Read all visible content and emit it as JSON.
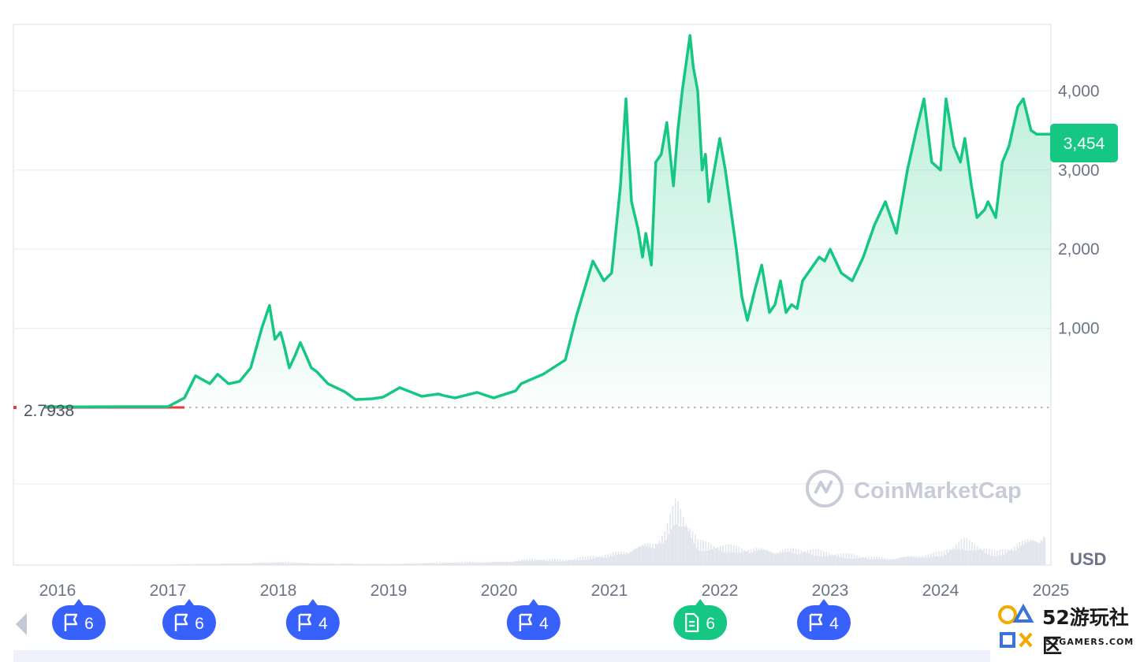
{
  "chart_data": {
    "type": "area",
    "currency_label": "USD",
    "start_value_label": "2.7938",
    "current_price_label": "3,454",
    "watermark": "CoinMarketCap",
    "y_ticks": [
      {
        "value": 1000,
        "label": "1,000"
      },
      {
        "value": 2000,
        "label": "2,000"
      },
      {
        "value": 3000,
        "label": "3,000"
      },
      {
        "value": 4000,
        "label": "4,000"
      }
    ],
    "ylim": [
      0,
      4800
    ],
    "x_ticks": [
      {
        "year": 2016,
        "label": "2016"
      },
      {
        "year": 2017,
        "label": "2017"
      },
      {
        "year": 2018,
        "label": "2018"
      },
      {
        "year": 2019,
        "label": "2019"
      },
      {
        "year": 2020,
        "label": "2020"
      },
      {
        "year": 2021,
        "label": "2021"
      },
      {
        "year": 2022,
        "label": "2022"
      },
      {
        "year": 2023,
        "label": "2023"
      },
      {
        "year": 2024,
        "label": "2024"
      },
      {
        "year": 2025,
        "label": "2025"
      }
    ],
    "xlim": [
      2015.6,
      2025.0
    ],
    "series": [
      {
        "x": [
          2015.88,
          2016.2,
          2016.6,
          2017.0,
          2017.15,
          2017.25,
          2017.38,
          2017.45,
          2017.55,
          2017.65,
          2017.75,
          2017.85,
          2017.92,
          2017.97,
          2018.02,
          2018.05,
          2018.1,
          2018.15,
          2018.2,
          2018.3,
          2018.35,
          2018.45,
          2018.6,
          2018.7,
          2018.85,
          2018.95,
          2019.1,
          2019.3,
          2019.45,
          2019.5,
          2019.6,
          2019.8,
          2019.95,
          2020.15,
          2020.2,
          2020.4,
          2020.6,
          2020.7,
          2020.85,
          2020.95,
          2021.02,
          2021.1,
          2021.15,
          2021.2,
          2021.26,
          2021.3,
          2021.33,
          2021.38,
          2021.42,
          2021.47,
          2021.52,
          2021.58,
          2021.62,
          2021.66,
          2021.7,
          2021.73,
          2021.76,
          2021.8,
          2021.84,
          2021.87,
          2021.9,
          2021.95,
          2022.0,
          2022.05,
          2022.1,
          2022.15,
          2022.2,
          2022.25,
          2022.32,
          2022.38,
          2022.45,
          2022.5,
          2022.55,
          2022.6,
          2022.65,
          2022.7,
          2022.75,
          2022.8,
          2022.9,
          2022.95,
          2023.0,
          2023.1,
          2023.2,
          2023.3,
          2023.4,
          2023.5,
          2023.6,
          2023.7,
          2023.78,
          2023.85,
          2023.92,
          2024.0,
          2024.05,
          2024.12,
          2024.18,
          2024.22,
          2024.28,
          2024.33,
          2024.4,
          2024.43,
          2024.5,
          2024.56,
          2024.62,
          2024.7,
          2024.75,
          2024.82,
          2024.87,
          2024.93,
          2024.97,
          2025.0
        ],
        "values": [
          10,
          8,
          10,
          10,
          120,
          400,
          300,
          420,
          300,
          330,
          500,
          1000,
          1290,
          860,
          950,
          800,
          500,
          650,
          820,
          500,
          450,
          300,
          200,
          100,
          110,
          130,
          250,
          140,
          170,
          150,
          120,
          190,
          120,
          210,
          300,
          420,
          600,
          1150,
          1850,
          1600,
          1700,
          2800,
          3900,
          2600,
          2250,
          1900,
          2200,
          1800,
          3100,
          3200,
          3600,
          2800,
          3500,
          4000,
          4400,
          4700,
          4300,
          4000,
          3000,
          3200,
          2600,
          3000,
          3400,
          3000,
          2500,
          2000,
          1400,
          1100,
          1500,
          1800,
          1200,
          1300,
          1600,
          1200,
          1300,
          1250,
          1600,
          1700,
          1900,
          1850,
          2000,
          1700,
          1600,
          1900,
          2300,
          2600,
          2200,
          3000,
          3500,
          3900,
          3100,
          3000,
          3900,
          3300,
          3100,
          3400,
          2800,
          2400,
          2500,
          2600,
          2400,
          3100,
          3300,
          3800,
          3900,
          3500,
          3454,
          3454,
          3454,
          3454
        ]
      }
    ],
    "volume_series": {
      "x": [
        2016.0,
        2017.0,
        2017.6,
        2018.0,
        2018.3,
        2019.0,
        2019.5,
        2020.0,
        2020.3,
        2020.6,
        2021.0,
        2021.2,
        2021.4,
        2021.5,
        2021.6,
        2021.8,
        2022.0,
        2022.4,
        2022.8,
        2023.0,
        2023.5,
        2024.0,
        2024.2,
        2024.5,
        2024.8,
        2024.95
      ],
      "values": [
        0,
        1,
        3,
        5,
        3,
        2,
        4,
        6,
        10,
        8,
        18,
        30,
        40,
        55,
        100,
        35,
        30,
        28,
        25,
        18,
        12,
        20,
        38,
        20,
        45,
        60
      ]
    }
  },
  "events": [
    {
      "year": 2015.95,
      "kind": "flag",
      "count": "6",
      "color": "#3861fb"
    },
    {
      "year": 2016.95,
      "kind": "flag",
      "count": "6",
      "color": "#3861fb"
    },
    {
      "year": 2018.07,
      "kind": "flag",
      "count": "4",
      "color": "#3861fb"
    },
    {
      "year": 2020.07,
      "kind": "flag",
      "count": "4",
      "color": "#3861fb"
    },
    {
      "year": 2021.58,
      "kind": "document",
      "count": "6",
      "color": "#16c784"
    },
    {
      "year": 2022.7,
      "kind": "flag",
      "count": "4",
      "color": "#3861fb"
    },
    {
      "year": 2024.6,
      "kind": "flag",
      "count": "",
      "color": "#3861fb"
    }
  ],
  "colors": {
    "line": "#16c784",
    "price_tag": "#16c784",
    "grid": "#eff2f5",
    "baseline_dot": "#858ca2",
    "start_segment": "#ea3943",
    "volume": "#e1e5ec"
  },
  "badge": {
    "big_text": "52游玩社区",
    "small_text": "52GAMERS.COM"
  }
}
